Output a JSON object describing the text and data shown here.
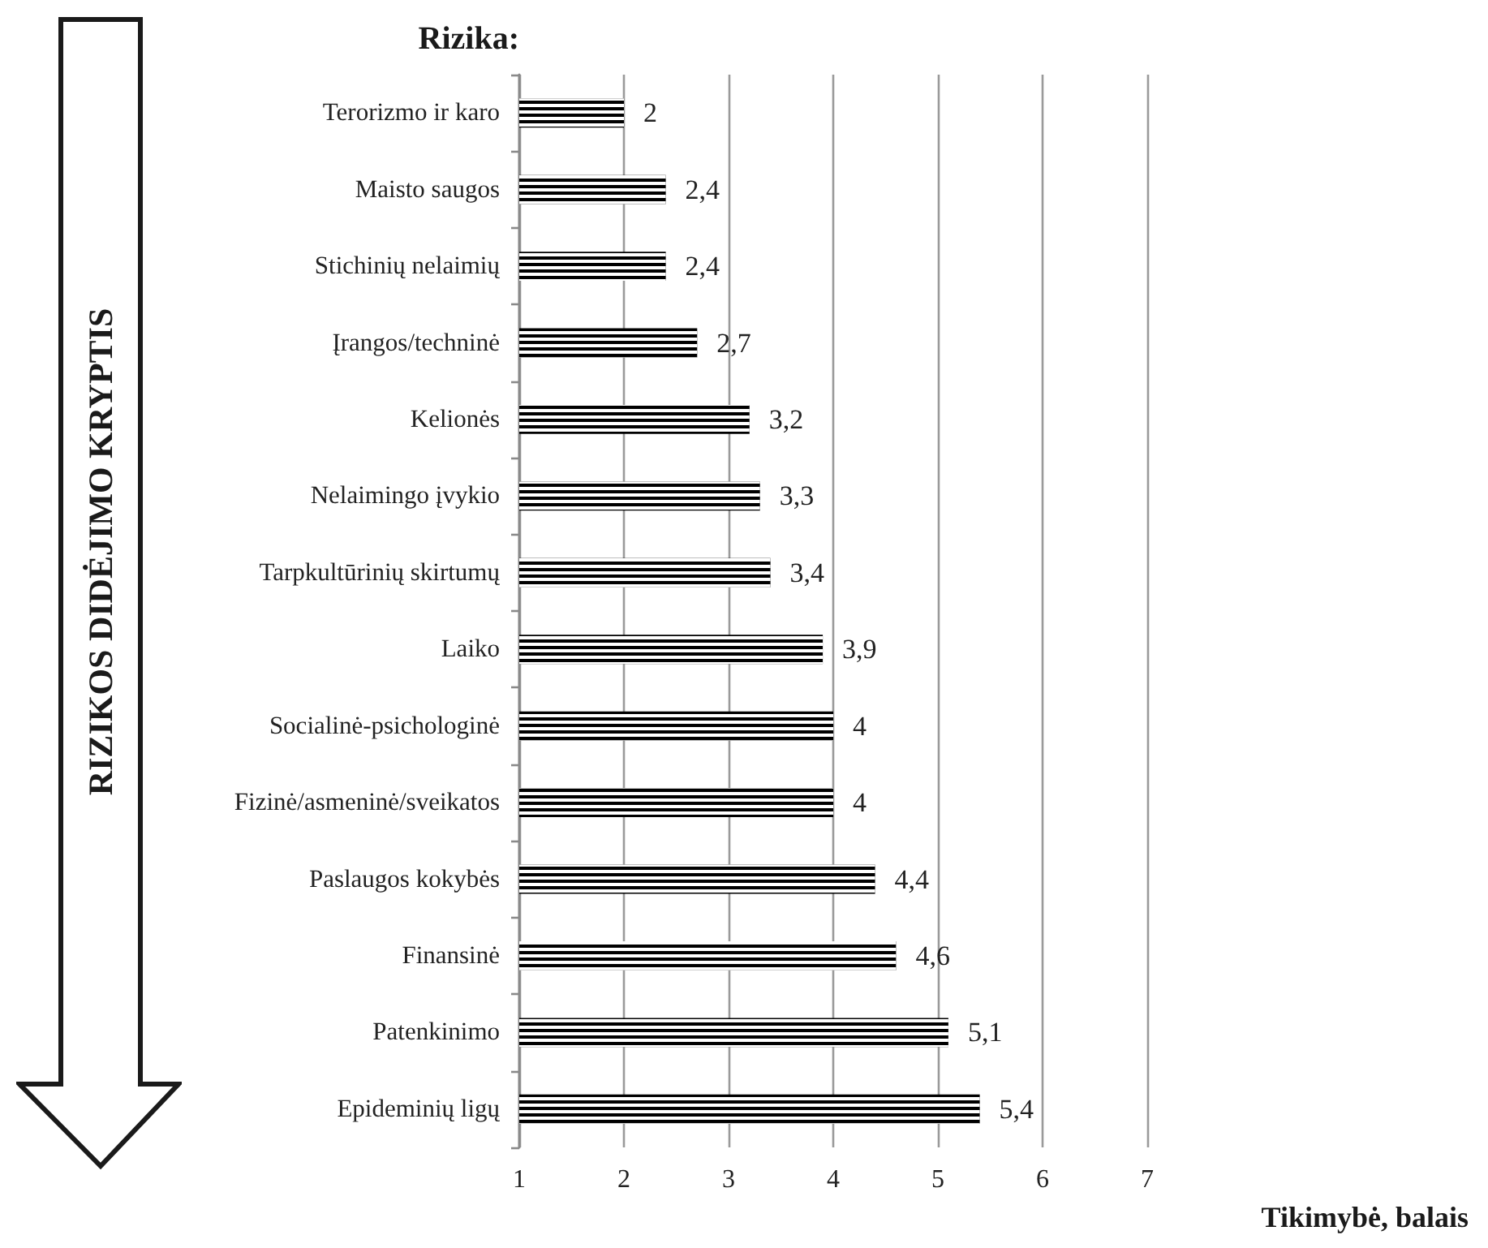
{
  "chart_data": {
    "type": "bar",
    "orientation": "horizontal",
    "ylabel": "Rizika:",
    "xlabel": "Tikimybė, balais",
    "annotations": [
      "RIZIKOS DIDĖJIMO KRYPTIS"
    ],
    "categories": [
      "Terorizmo ir karo",
      "Maisto saugos",
      "Stichinių nelaimių",
      "Įrangos/techninė",
      "Kelionės",
      "Nelaimingo įvykio",
      "Tarpkultūrinių skirtumų",
      "Laiko",
      "Socialinė-psichologinė",
      "Fizinė/asmeninė/sveikatos",
      "Paslaugos kokybės",
      "Finansinė",
      "Patenkinimo",
      "Epideminių ligų"
    ],
    "values": [
      2,
      2.4,
      2.4,
      2.7,
      3.2,
      3.3,
      3.4,
      3.9,
      4,
      4,
      4.4,
      4.6,
      5.1,
      5.4
    ],
    "value_labels": [
      "2",
      "2,4",
      "2,4",
      "2,7",
      "3,2",
      "3,3",
      "3,4",
      "3,9",
      "4",
      "4",
      "4,4",
      "4,6",
      "5,1",
      "5,4"
    ],
    "color": "#000000",
    "xlim": [
      1,
      7
    ],
    "xticks": [
      1,
      2,
      3,
      4,
      5,
      6,
      7
    ],
    "grid": "x"
  }
}
